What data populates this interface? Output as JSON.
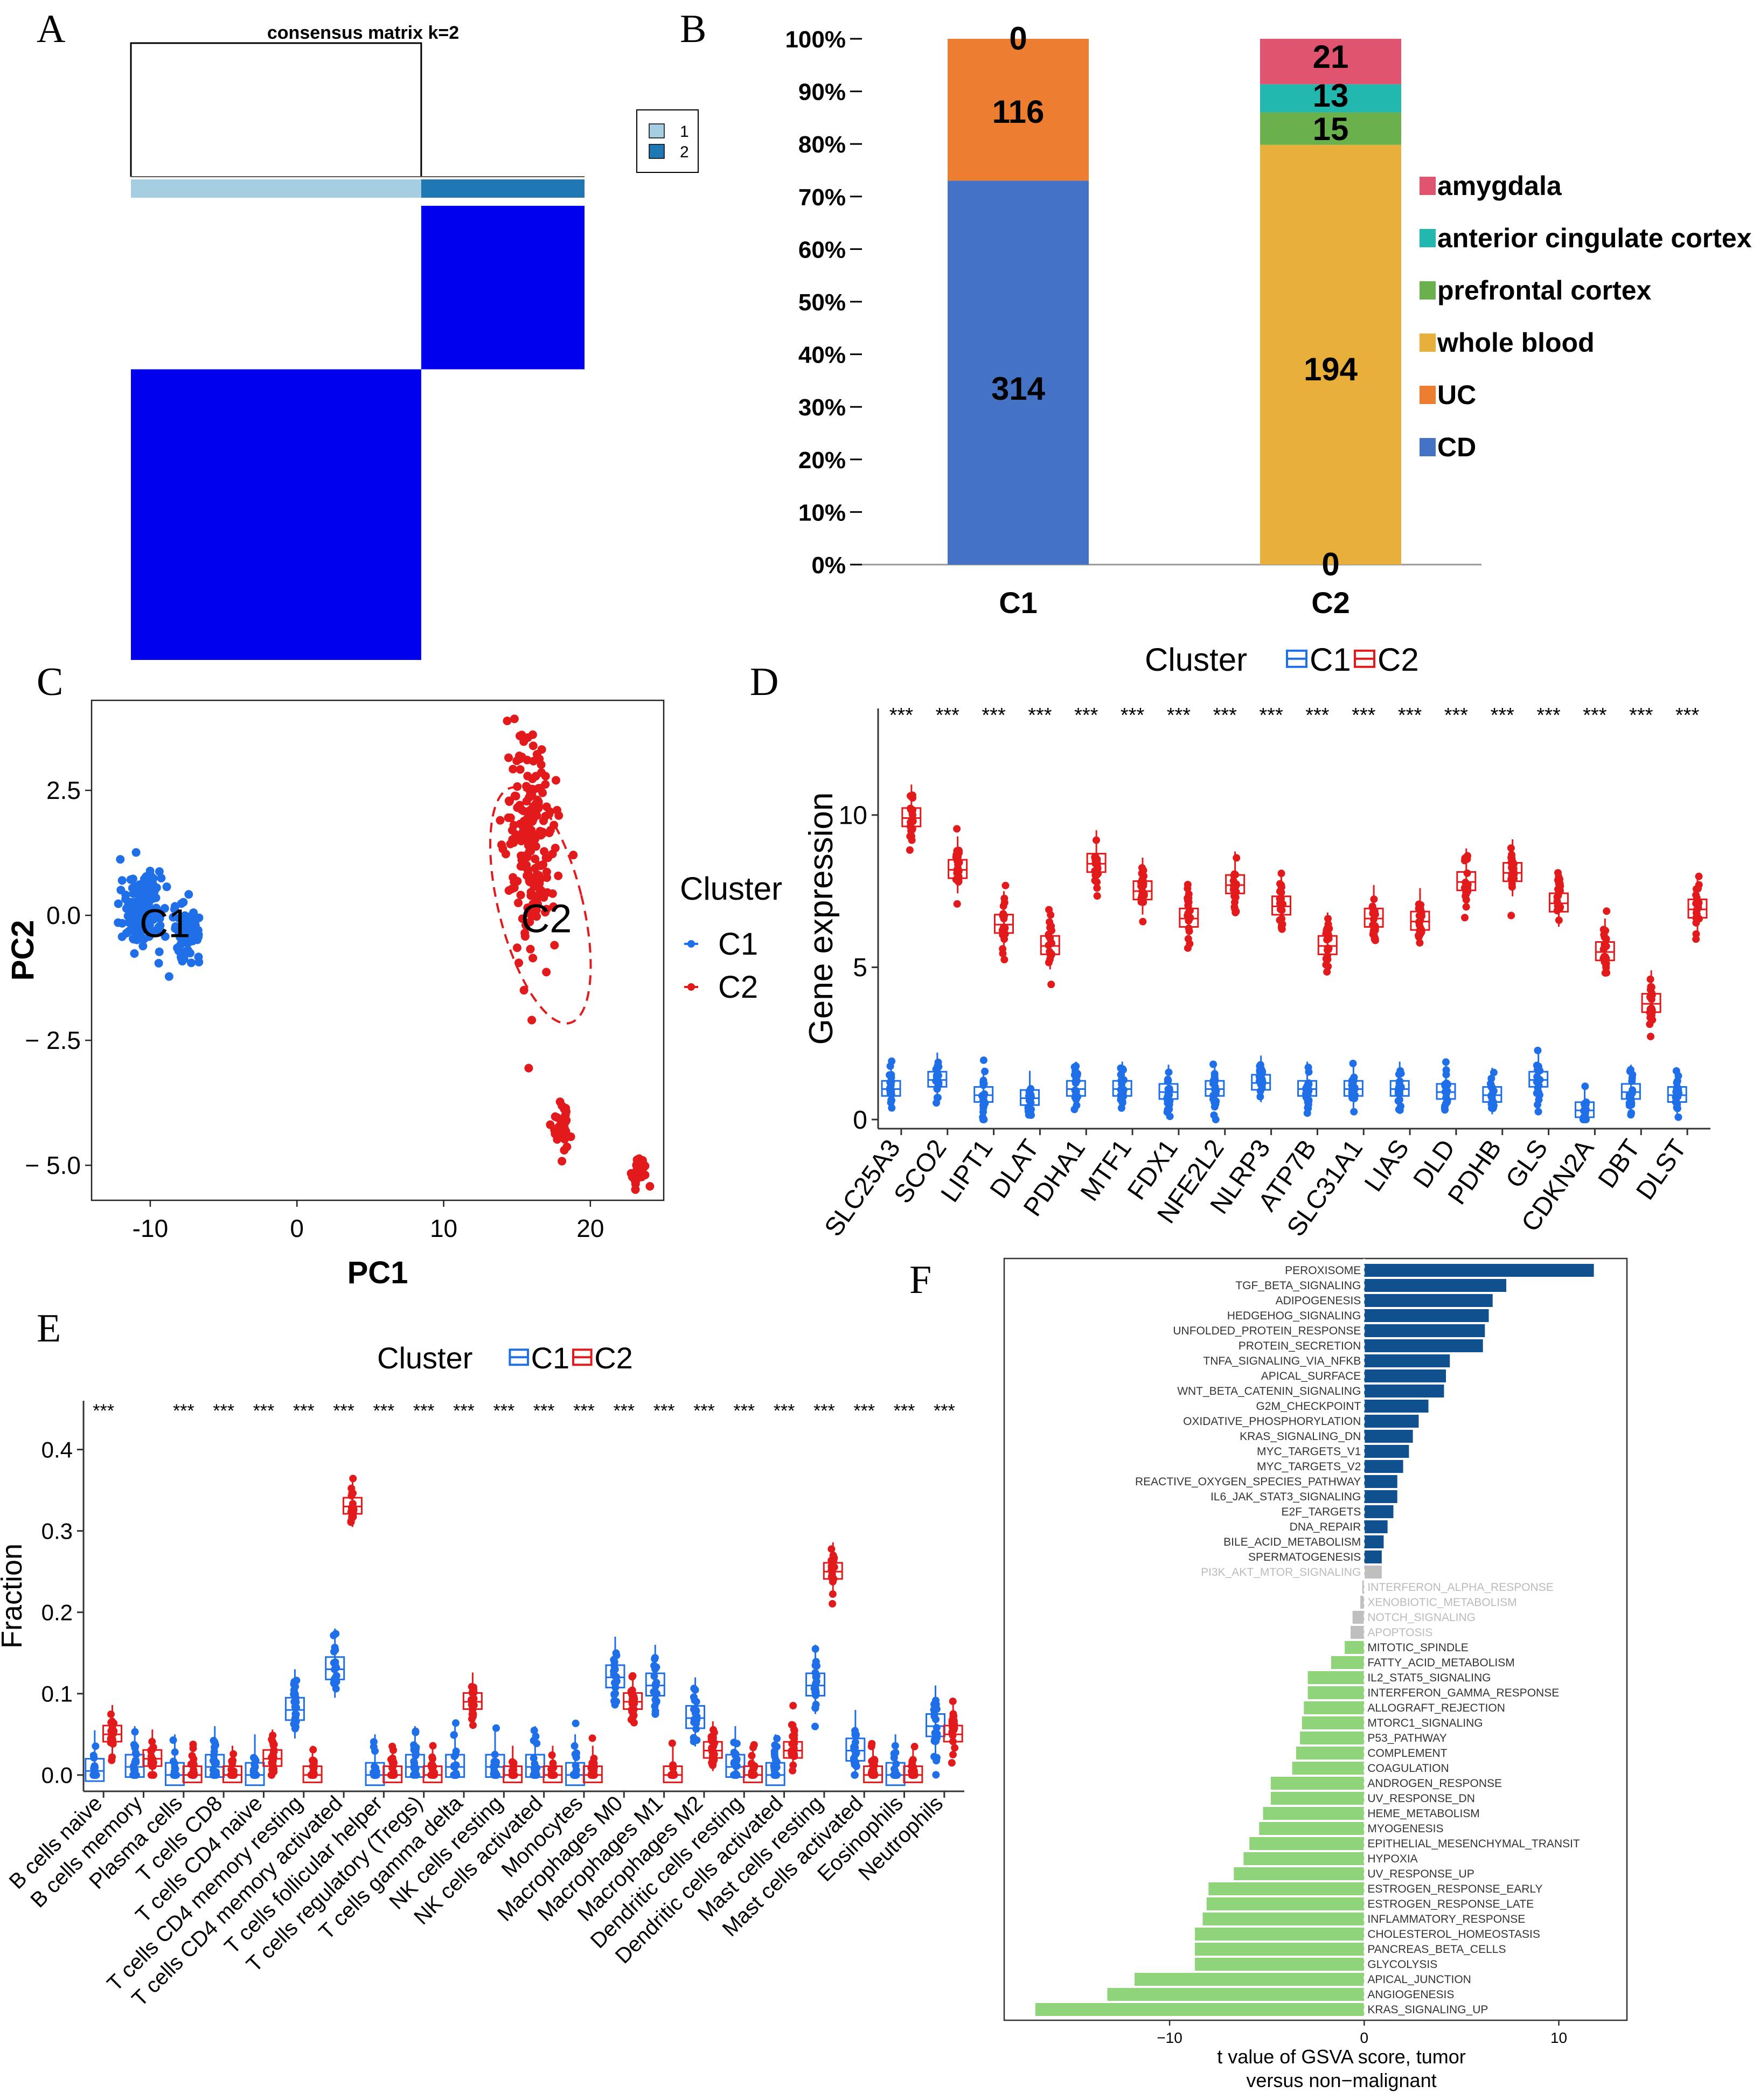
{
  "panels": {
    "A": "A",
    "B": "B",
    "C": "C",
    "D": "D",
    "E": "E",
    "F": "F"
  },
  "colors": {
    "blue_cluster": "#1f6fe8",
    "red_cluster": "#e31a1c",
    "consensus_fill": "#0000ee",
    "consensus_light": "#a6cee3",
    "consensus_dark": "#1f78b4",
    "cd": "#4472c4",
    "uc": "#ed7d31",
    "whole_blood": "#e8b03a",
    "prefrontal": "#6ab04c",
    "acc": "#22b8b0",
    "amygdala": "#e15470",
    "gsva_pos": "#10508f",
    "gsva_neg": "#8fd37a",
    "gsva_ns": "#bfbfbf"
  },
  "chart_data": [
    {
      "panel": "A",
      "type": "heatmap",
      "title": "consensus matrix k=2",
      "legend": {
        "labels": [
          "1",
          "2"
        ]
      },
      "clusters": [
        {
          "id": "1",
          "fraction": 0.64
        },
        {
          "id": "2",
          "fraction": 0.36
        }
      ],
      "blocks": [
        {
          "cluster": "1",
          "value": 1
        },
        {
          "cluster": "2",
          "value": 1
        }
      ]
    },
    {
      "panel": "B",
      "type": "bar",
      "stacked": true,
      "percent": true,
      "categories": [
        "C1",
        "C2"
      ],
      "yticks": [
        "0%",
        "10%",
        "20%",
        "30%",
        "40%",
        "50%",
        "60%",
        "70%",
        "80%",
        "90%",
        "100%"
      ],
      "series": [
        {
          "name": "CD",
          "values": [
            314,
            0
          ],
          "labels": [
            "314",
            "0"
          ]
        },
        {
          "name": "UC",
          "values": [
            116,
            0
          ],
          "labels": [
            "116",
            ""
          ]
        },
        {
          "name": "whole blood",
          "values": [
            0,
            194
          ],
          "labels": [
            "",
            "194"
          ]
        },
        {
          "name": "prefrontal cortex",
          "values": [
            0,
            15
          ],
          "labels": [
            "",
            "15"
          ]
        },
        {
          "name": "anterior cingulate cortex",
          "values": [
            0,
            13
          ],
          "labels": [
            "",
            "13"
          ]
        },
        {
          "name": "amygdala",
          "values": [
            0,
            21
          ],
          "labels": [
            "0",
            "21"
          ]
        }
      ],
      "legend": [
        "amygdala",
        "anterior cingulate cortex",
        "prefrontal cortex",
        "whole blood",
        "UC",
        "CD"
      ]
    },
    {
      "panel": "C",
      "type": "scatter",
      "xlabel": "PC1",
      "ylabel": "PC2",
      "xlim": [
        -14,
        25
      ],
      "ylim": [
        -5.7,
        4.3
      ],
      "xticks": [
        "-10",
        "0",
        "10",
        "20"
      ],
      "xtick_values": [
        -10,
        0,
        10,
        20
      ],
      "yticks": [
        "2.5",
        "0.0",
        "− 2.5",
        "− 5.0"
      ],
      "ytick_values": [
        2.5,
        0,
        -2.5,
        -5
      ],
      "legend_title": "Cluster",
      "series": [
        {
          "name": "C1",
          "label": "C1",
          "label_at": [
            -9,
            -0.2
          ],
          "clusters": [
            {
              "cx": -10.6,
              "cy": 0.1,
              "sx": 0.7,
              "sy": 0.35,
              "n": 200
            },
            {
              "cx": -7.5,
              "cy": -0.35,
              "sx": 0.45,
              "sy": 0.25,
              "n": 80
            }
          ]
        },
        {
          "name": "C2",
          "label": "C2",
          "label_at": [
            17,
            -0.1
          ],
          "clusters": [
            {
              "cx": 16,
              "cy": 1.4,
              "sx": 0.9,
              "sy": 1.1,
              "n": 210
            },
            {
              "cx": 18,
              "cy": -4.2,
              "sx": 0.3,
              "sy": 0.3,
              "n": 30
            },
            {
              "cx": 23.3,
              "cy": -5.1,
              "sx": 0.35,
              "sy": 0.2,
              "n": 25
            }
          ]
        }
      ]
    },
    {
      "panel": "D",
      "type": "box",
      "ylabel": "Gene expression",
      "ylim": [
        -0.3,
        13.5
      ],
      "yticks": [
        "0",
        "5",
        "10"
      ],
      "ytick_values": [
        0,
        5,
        10
      ],
      "legend_title": "Cluster",
      "legend": [
        "C1",
        "C2"
      ],
      "sig": "***",
      "categories": [
        "SLC25A3",
        "SCO2",
        "LIPT1",
        "DLAT",
        "PDHA1",
        "MTF1",
        "FDX1",
        "NFE2L2",
        "NLRP3",
        "ATP7B",
        "SLC31A1",
        "LIAS",
        "DLD",
        "PDHB",
        "GLS",
        "CDKN2A",
        "DBT",
        "DLST"
      ],
      "series": [
        {
          "name": "C1",
          "medians": [
            1.0,
            1.3,
            0.8,
            0.7,
            1.0,
            1.0,
            0.9,
            1.0,
            1.2,
            1.0,
            1.0,
            1.0,
            0.9,
            0.8,
            1.3,
            0.3,
            0.9,
            0.8
          ]
        },
        {
          "name": "C2",
          "medians": [
            9.9,
            8.2,
            6.4,
            5.7,
            8.4,
            7.5,
            6.6,
            7.7,
            7.0,
            5.7,
            6.6,
            6.5,
            7.8,
            8.1,
            7.1,
            5.5,
            3.8,
            6.9
          ]
        }
      ]
    },
    {
      "panel": "E",
      "type": "box",
      "ylabel": "Fraction",
      "ylim": [
        -0.02,
        0.46
      ],
      "yticks": [
        "0.0",
        "0.1",
        "0.2",
        "0.3",
        "0.4"
      ],
      "ytick_values": [
        0,
        0.1,
        0.2,
        0.3,
        0.4
      ],
      "legend_title": "Cluster",
      "legend": [
        "C1",
        "C2"
      ],
      "sig": "***",
      "sig_flags": [
        1,
        0,
        1,
        1,
        1,
        1,
        1,
        1,
        1,
        1,
        1,
        1,
        1,
        1,
        1,
        1,
        1,
        1,
        1,
        1,
        1,
        1
      ],
      "categories": [
        "B cells naive",
        "B cells memory",
        "Plasma cells",
        "T cells CD8",
        "T cells CD4 naive",
        "T cells CD4 memory resting",
        "T cells CD4 memory activated",
        "T cells follicular helper",
        "T cells regulatory (Tregs)",
        "T cells gamma delta",
        "NK cells resting",
        "NK cells activated",
        "Monocytes",
        "Macrophages M0",
        "Macrophages M1",
        "Macrophages M2",
        "Dendritic cells resting",
        "Dendritic cells activated",
        "Mast cells resting",
        "Mast cells activated",
        "Eosinophils",
        "Neutrophils"
      ],
      "series": [
        {
          "name": "C1",
          "medians": [
            0.005,
            0.01,
            0.0,
            0.01,
            0.0,
            0.08,
            0.13,
            0.0,
            0.01,
            0.01,
            0.01,
            0.01,
            0.0,
            0.12,
            0.11,
            0.07,
            0.01,
            0.0,
            0.11,
            0.03,
            0.0,
            0.06
          ]
        },
        {
          "name": "C2",
          "medians": [
            0.05,
            0.02,
            0.0,
            0.0,
            0.02,
            0.0,
            0.33,
            0.0,
            0.0,
            0.09,
            0.0,
            0.0,
            0.0,
            0.09,
            0.0,
            0.03,
            0.0,
            0.03,
            0.25,
            0.0,
            0.0,
            0.05
          ]
        }
      ]
    },
    {
      "panel": "F",
      "type": "bar",
      "orientation": "horizontal",
      "xlabel": "t value of GSVA score, tumor versus non−malignant",
      "xlabel_lines": [
        "t value of GSVA score, tumor",
        "versus non−malignant"
      ],
      "xlim": [
        -18.5,
        13.5
      ],
      "xticks": [
        "−10",
        "0",
        "10"
      ],
      "xtick_values": [
        -10,
        0,
        10
      ],
      "categories": [
        "PEROXISOME",
        "TGF_BETA_SIGNALING",
        "ADIPOGENESIS",
        "HEDGEHOG_SIGNALING",
        "UNFOLDED_PROTEIN_RESPONSE",
        "PROTEIN_SECRETION",
        "TNFA_SIGNALING_VIA_NFKB",
        "APICAL_SURFACE",
        "WNT_BETA_CATENIN_SIGNALING",
        "G2M_CHECKPOINT",
        "OXIDATIVE_PHOSPHORYLATION",
        "KRAS_SIGNALING_DN",
        "MYC_TARGETS_V1",
        "MYC_TARGETS_V2",
        "REACTIVE_OXYGEN_SPECIES_PATHWAY",
        "IL6_JAK_STAT3_SIGNALING",
        "E2F_TARGETS",
        "DNA_REPAIR",
        "BILE_ACID_METABOLISM",
        "SPERMATOGENESIS",
        "PI3K_AKT_MTOR_SIGNALING",
        "INTERFERON_ALPHA_RESPONSE",
        "XENOBIOTIC_METABOLISM",
        "NOTCH_SIGNALING",
        "APOPTOSIS",
        "MITOTIC_SPINDLE",
        "FATTY_ACID_METABOLISM",
        "IL2_STAT5_SIGNALING",
        "INTERFERON_GAMMA_RESPONSE",
        "ALLOGRAFT_REJECTION",
        "MTORC1_SIGNALING",
        "P53_PATHWAY",
        "COMPLEMENT",
        "COAGULATION",
        "ANDROGEN_RESPONSE",
        "UV_RESPONSE_DN",
        "HEME_METABOLISM",
        "MYOGENESIS",
        "EPITHELIAL_MESENCHYMAL_TRANSIT",
        "HYPOXIA",
        "UV_RESPONSE_UP",
        "ESTROGEN_RESPONSE_EARLY",
        "ESTROGEN_RESPONSE_LATE",
        "INFLAMMATORY_RESPONSE",
        "CHOLESTEROL_HOMEOSTASIS",
        "PANCREAS_BETA_CELLS",
        "GLYCOLYSIS",
        "APICAL_JUNCTION",
        "ANGIOGENESIS",
        "KRAS_SIGNALING_UP"
      ],
      "values": [
        11.8,
        7.3,
        6.6,
        6.4,
        6.2,
        6.1,
        4.4,
        4.2,
        4.1,
        3.3,
        2.8,
        2.5,
        2.3,
        2.0,
        1.7,
        1.7,
        1.5,
        1.2,
        1.0,
        0.9,
        0.9,
        -0.1,
        -0.2,
        -0.6,
        -0.7,
        -1.0,
        -1.7,
        -2.9,
        -2.9,
        -3.1,
        -3.2,
        -3.3,
        -3.5,
        -3.7,
        -4.8,
        -4.8,
        -5.2,
        -5.4,
        -5.9,
        -6.2,
        -6.7,
        -8.0,
        -8.1,
        -8.3,
        -8.7,
        -8.7,
        -8.7,
        -11.8,
        -13.2,
        -16.9
      ],
      "nonsig": [
        20,
        21,
        22,
        23,
        24
      ]
    }
  ]
}
